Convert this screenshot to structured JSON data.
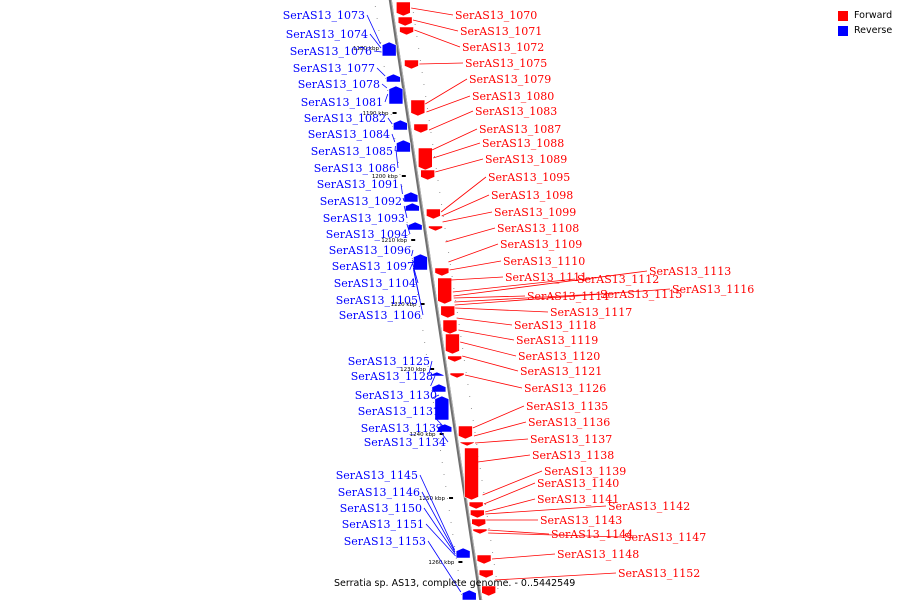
{
  "caption": "Serratia sp. AS13, complete genome. - 0..5442549",
  "legend": {
    "forward_label": "Forward",
    "reverse_label": "Reverse",
    "forward_color": "#ff0000",
    "reverse_color": "#0000ff"
  },
  "scale_ticks": [
    "1180 kbp",
    "1190 kbp",
    "1200 kbp",
    "1210 kbp",
    "1220 kbp",
    "1230 kbp",
    "1240 kbp",
    "1250 kbp",
    "1260 kbp"
  ],
  "forward_genes": [
    "SerAS13_1070",
    "SerAS13_1071",
    "SerAS13_1072",
    "SerAS13_1075",
    "SerAS13_1079",
    "SerAS13_1080",
    "SerAS13_1083",
    "SerAS13_1087",
    "SerAS13_1088",
    "SerAS13_1089",
    "SerAS13_1095",
    "SerAS13_1098",
    "SerAS13_1099",
    "SerAS13_1108",
    "SerAS13_1109",
    "SerAS13_1110",
    "SerAS13_1111",
    "SerAS13_1112",
    "SerAS13_1113",
    "SerAS13_1114",
    "SerAS13_1115",
    "SerAS13_1116",
    "SerAS13_1117",
    "SerAS13_1118",
    "SerAS13_1119",
    "SerAS13_1120",
    "SerAS13_1121",
    "SerAS13_1126",
    "SerAS13_1135",
    "SerAS13_1136",
    "SerAS13_1137",
    "SerAS13_1138",
    "SerAS13_1139",
    "SerAS13_1140",
    "SerAS13_1141",
    "SerAS13_1142",
    "SerAS13_1143",
    "SerAS13_1144",
    "SerAS13_1147",
    "SerAS13_1148",
    "SerAS13_1152"
  ],
  "reverse_genes": [
    "SerAS13_1073",
    "SerAS13_1074",
    "SerAS13_1076",
    "SerAS13_1077",
    "SerAS13_1078",
    "SerAS13_1081",
    "SerAS13_1082",
    "SerAS13_1084",
    "SerAS13_1085",
    "SerAS13_1086",
    "SerAS13_1091",
    "SerAS13_1092",
    "SerAS13_1093",
    "SerAS13_1094",
    "SerAS13_1096",
    "SerAS13_1097",
    "SerAS13_1104",
    "SerAS13_1105",
    "SerAS13_1106",
    "SerAS13_1125",
    "SerAS13_1128",
    "SerAS13_1130",
    "SerAS13_1131",
    "SerAS13_1132",
    "SerAS13_1134",
    "SerAS13_1145",
    "SerAS13_1146",
    "SerAS13_1150",
    "SerAS13_1151",
    "SerAS13_1153"
  ]
}
